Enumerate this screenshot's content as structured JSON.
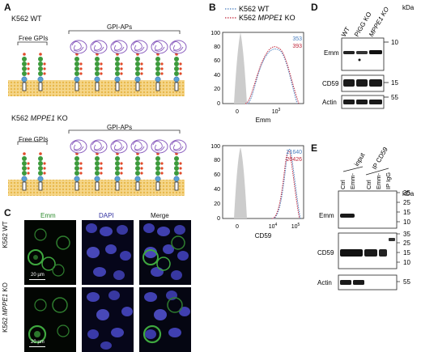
{
  "panels": {
    "A": "A",
    "B": "B",
    "C": "C",
    "D": "D",
    "E": "E"
  },
  "A": {
    "wt_label_prefix": "K562 WT",
    "ko_label_prefix": "K562",
    "ko_label_gene": "MPPE1",
    "ko_label_suffix": " KO",
    "free_gpis": "Free GPIs",
    "gpi_aps": "GPI-APs"
  },
  "B": {
    "legend_wt": "K562 WT",
    "legend_ko_prefix": "K562",
    "legend_ko_gene": "MPPE1",
    "legend_ko_suffix": " KO",
    "top_val_wt": "353",
    "top_val_ko": "393",
    "bottom_val_wt": "21640",
    "bottom_val_ko": "20426",
    "top_xlabel": "Emm",
    "bottom_xlabel": "CD59",
    "y_ticks": [
      "0",
      "20",
      "40",
      "60",
      "80",
      "100"
    ],
    "x_tick_0": "0",
    "x_tick_3": "10",
    "x_tick_3_exp": "3",
    "x_tick_4": "10",
    "x_tick_4_exp": "4",
    "x_tick_5": "10",
    "x_tick_5_exp": "5"
  },
  "C": {
    "col_emm": "Emm",
    "col_dapi": "DAPI",
    "col_merge": "Merge",
    "row_wt": "K562 WT",
    "row_ko_prefix": "K562 ",
    "row_ko_gene": "MPPE1",
    "row_ko_suffix": " KO",
    "scale": "20 µm"
  },
  "D": {
    "lanes": [
      "WT",
      "PIGG KO",
      "MPPE1 KO"
    ],
    "emm": "Emm",
    "cd59": "CD59",
    "actin": "Actin",
    "kda": "kDa",
    "mw_10": "10",
    "mw_15": "15",
    "mw_55": "55"
  },
  "E": {
    "input": "input",
    "ip": "IP CD59",
    "lane_ctrl": "Ctrl",
    "lane_emm": "Emm-",
    "lane_ctrl2": "Ctrl",
    "lane_emm2": "Emm-",
    "lane_ipigg": "IP IgG",
    "emm": "Emm",
    "cd59": "CD59",
    "actin": "Actin",
    "kda": "kDa",
    "mw": [
      "35",
      "25",
      "15",
      "10",
      "35",
      "25",
      "15",
      "10",
      "55"
    ]
  },
  "colors": {
    "wt_line": "#4a7fbf",
    "ko_line": "#c0283c",
    "emm_green": "#3fa83f",
    "dapi_blue": "#4040b0",
    "membrane": "#f2c96a",
    "sugar_green": "#3c9a3c",
    "sugar_blue": "#5aa0d8",
    "protein_purple": "#8b5fbf"
  }
}
